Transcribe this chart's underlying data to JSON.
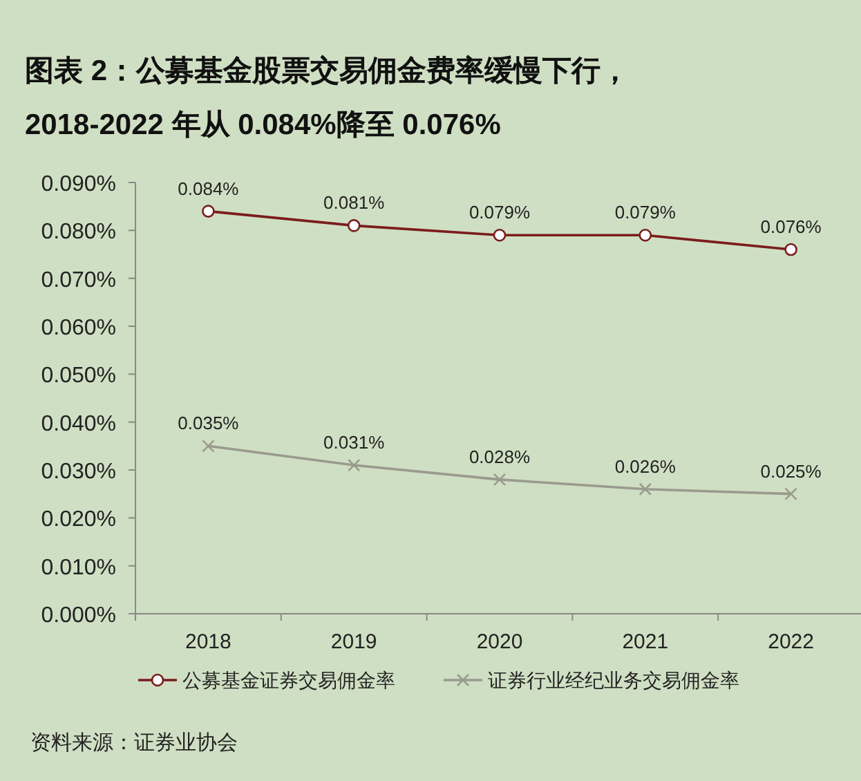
{
  "chart_data": {
    "type": "line",
    "title": "图表 2：公募基金股票交易佣金费率缓慢下行，",
    "subtitle": "2018-2022 年从 0.084%降至 0.076%",
    "categories": [
      "2018",
      "2019",
      "2020",
      "2021",
      "2022"
    ],
    "series": [
      {
        "name": "公募基金证券交易佣金率",
        "color": "#7b1c1c",
        "marker": "circle",
        "values": [
          0.084,
          0.081,
          0.079,
          0.079,
          0.076
        ],
        "value_labels": [
          "0.084%",
          "0.081%",
          "0.079%",
          "0.079%",
          "0.076%"
        ]
      },
      {
        "name": "证券行业经纪业务交易佣金率",
        "color": "#9a9a8e",
        "marker": "cross",
        "values": [
          0.035,
          0.031,
          0.028,
          0.026,
          0.025
        ],
        "value_labels": [
          "0.035%",
          "0.031%",
          "0.028%",
          "0.026%",
          "0.025%"
        ]
      }
    ],
    "ylim": [
      0,
      0.09
    ],
    "yticks": [
      {
        "value": 0,
        "label": "0.000%"
      },
      {
        "value": 0.01,
        "label": "0.010%"
      },
      {
        "value": 0.02,
        "label": "0.020%"
      },
      {
        "value": 0.03,
        "label": "0.030%"
      },
      {
        "value": 0.04,
        "label": "0.040%"
      },
      {
        "value": 0.05,
        "label": "0.050%"
      },
      {
        "value": 0.06,
        "label": "0.060%"
      },
      {
        "value": 0.07,
        "label": "0.070%"
      },
      {
        "value": 0.08,
        "label": "0.080%"
      },
      {
        "value": 0.09,
        "label": "0.090%"
      }
    ],
    "grid": false,
    "legend": "bottom",
    "annotations": [
      "资料来源：证券业协会"
    ]
  }
}
